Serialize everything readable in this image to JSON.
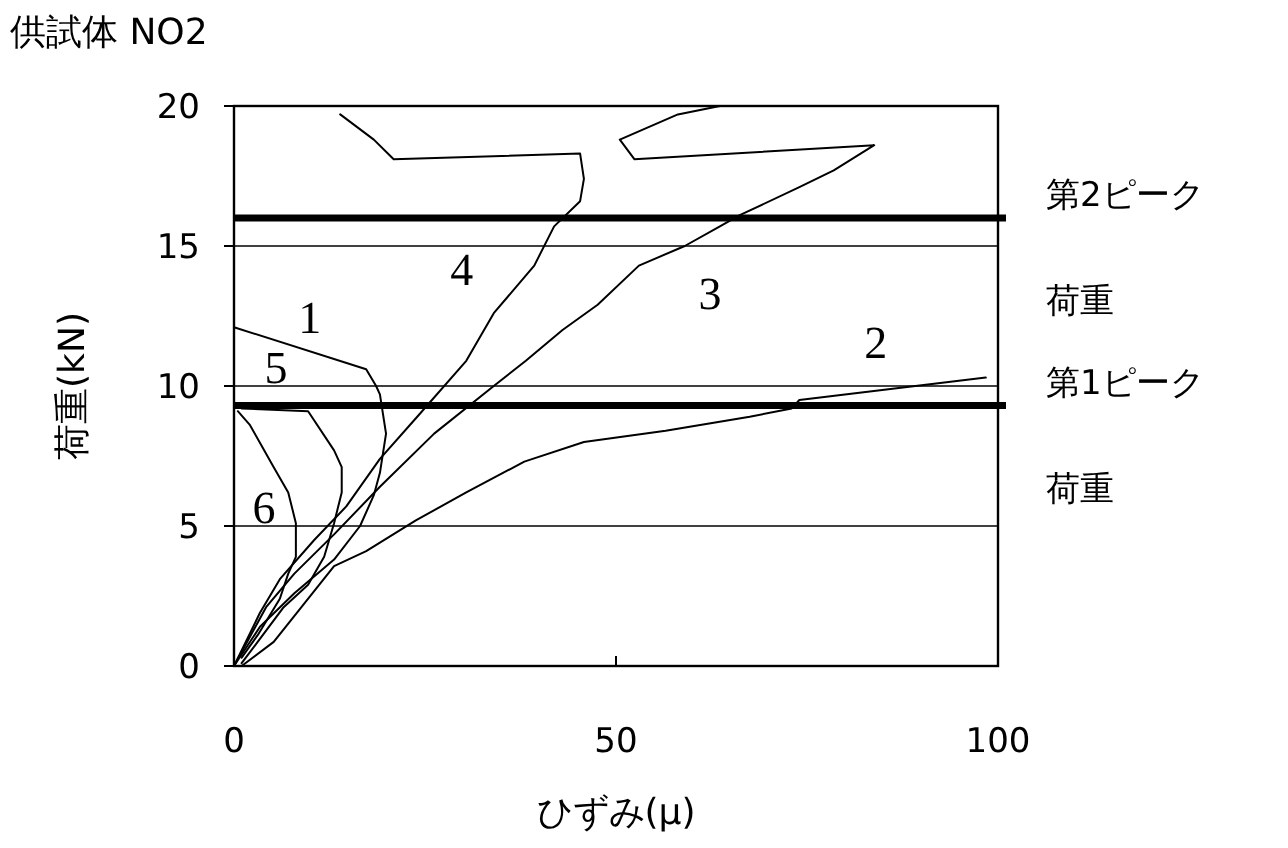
{
  "chart_data": {
    "type": "line",
    "title": "供試体 NO2",
    "xlabel": "ひずみ(μ)",
    "ylabel": "荷重(kN)",
    "xlim": [
      0,
      100
    ],
    "ylim": [
      0,
      20
    ],
    "xticks": [
      0,
      50,
      100
    ],
    "yticks": [
      0,
      5,
      10,
      15,
      20
    ],
    "grid": "y",
    "series": [
      {
        "color": "#000000",
        "x": [
          0,
          3.4,
          7.9,
          13.1,
          16.5,
          18.3,
          19.1,
          19.9,
          19.1,
          18.6,
          17.3,
          0
        ],
        "values": [
          0,
          1.4,
          2.6,
          3.8,
          5,
          6.1,
          6.9,
          8.3,
          9.7,
          10,
          10.6,
          12.1
        ]
      },
      {
        "color": "#000000",
        "x": [
          0,
          1,
          5.2,
          13.1,
          17.3,
          23.8,
          30.4,
          38,
          45.8,
          56.5,
          67.5,
          73,
          74,
          98.4
        ],
        "values": [
          0,
          0,
          0.86,
          3.57,
          4.1,
          5.2,
          6.2,
          7.3,
          8,
          8.4,
          8.9,
          9.2,
          9.5,
          10.3
        ]
      },
      {
        "color": "#000000",
        "x": [
          0,
          4.2,
          7.9,
          13.1,
          19.1,
          26.2,
          34,
          38.2,
          43,
          47.6,
          53,
          59,
          63.6,
          66.2,
          74,
          78.5,
          83.8,
          52.4,
          50.5,
          58.1,
          63.6
        ],
        "values": [
          0,
          2.1,
          3.3,
          4.7,
          6.4,
          8.3,
          10,
          10.9,
          12,
          12.9,
          14.3,
          15,
          15.7,
          16.1,
          17.1,
          17.7,
          18.6,
          18.1,
          18.8,
          19.7,
          20
        ]
      },
      {
        "color": "#000000",
        "x": [
          0,
          3.4,
          6,
          10.5,
          14.7,
          19.1,
          24.3,
          30.4,
          34,
          39.3,
          41.9,
          45.3,
          45.8,
          45.3,
          20.9,
          18.3,
          13.9
        ],
        "values": [
          0,
          1.9,
          3.1,
          4.5,
          5.7,
          7.4,
          9,
          10.9,
          12.6,
          14.3,
          15.7,
          16.6,
          17.4,
          18.3,
          18.1,
          18.8,
          19.7
        ]
      },
      {
        "color": "#000000",
        "x": [
          1,
          3.1,
          6.5,
          9.7,
          11.8,
          13.1,
          14.1,
          14.1,
          13.1,
          9.7,
          1
        ],
        "values": [
          0.1,
          0.86,
          2.1,
          2.9,
          3.9,
          5.1,
          6.2,
          7.1,
          7.7,
          9.1,
          9.2
        ]
      },
      {
        "color": "#000000",
        "x": [
          1,
          3.1,
          6,
          7.1,
          8.1,
          8.1,
          7.1,
          5.2,
          2.1,
          0.5
        ],
        "values": [
          0.3,
          1.1,
          2.4,
          3.3,
          3.9,
          5.1,
          6.2,
          7.1,
          8.6,
          9.1
        ]
      }
    ],
    "ref_lines": [
      {
        "axis": "y",
        "value": 16,
        "label": "第2ピーク荷重",
        "color": "#000000"
      },
      {
        "axis": "y",
        "value": 9.3,
        "label": "第1ピーク荷重",
        "color": "#000000"
      }
    ],
    "annotations": [
      {
        "text": "1",
        "x": 14.1,
        "y": 10.9
      },
      {
        "text": "2",
        "x": 88.2,
        "y": 10
      },
      {
        "text": "3",
        "x": 58.1,
        "y": 14.9
      },
      {
        "text": "4",
        "x": 34,
        "y": 12.6
      },
      {
        "text": "5",
        "x": 9.7,
        "y": 9.1
      },
      {
        "text": "6",
        "x": 8.1,
        "y": 4.1
      }
    ]
  }
}
